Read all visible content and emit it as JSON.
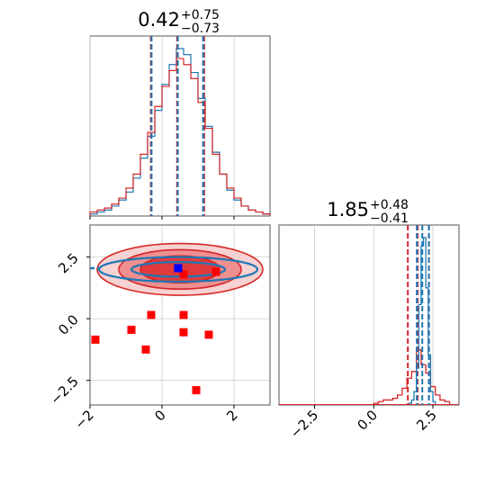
{
  "chart_data": [
    {
      "type": "histogram",
      "panel": "marginal-param-1",
      "title": {
        "median": "0.42",
        "upper": "+0.75",
        "lower": "−0.73"
      },
      "xlim": [
        -2,
        3
      ],
      "x_ticks": [
        "−2",
        "0",
        "2"
      ],
      "quantile_lines": {
        "red": [
          -0.31,
          0.42,
          1.17
        ],
        "blue": [
          -0.29,
          0.44,
          1.14
        ]
      },
      "series": [
        {
          "color": "#1f77b4",
          "bin_edges": [
            -2.0,
            -1.8,
            -1.6,
            -1.4,
            -1.2,
            -1.0,
            -0.8,
            -0.6,
            -0.4,
            -0.2,
            0.0,
            0.2,
            0.4,
            0.6,
            0.8,
            1.0,
            1.2,
            1.4,
            1.6,
            1.8,
            2.0,
            2.2,
            2.4,
            2.6,
            2.8,
            3.0
          ],
          "counts": [
            1,
            2,
            3,
            5,
            8,
            12,
            19,
            29,
            40,
            53,
            66,
            76,
            84,
            81,
            72,
            59,
            45,
            32,
            21,
            13,
            8,
            5,
            3,
            2,
            1
          ]
        },
        {
          "color": "#d62728",
          "bin_edges": [
            -2.0,
            -1.8,
            -1.6,
            -1.4,
            -1.2,
            -1.0,
            -0.8,
            -0.6,
            -0.4,
            -0.2,
            0.0,
            0.2,
            0.4,
            0.6,
            0.8,
            1.0,
            1.2,
            1.4,
            1.6,
            1.8,
            2.0,
            2.2,
            2.4,
            2.6,
            2.8,
            3.0
          ],
          "counts": [
            2,
            3,
            4,
            6,
            9,
            14,
            21,
            31,
            42,
            55,
            65,
            73,
            79,
            76,
            69,
            57,
            44,
            31,
            21,
            14,
            9,
            5,
            3,
            2,
            1
          ]
        }
      ]
    },
    {
      "type": "scatter",
      "panel": "joint-param-1-param-2",
      "xlim": [
        -2,
        3
      ],
      "ylim": [
        -3.5,
        3.8
      ],
      "x_ticks": [
        "−2",
        "0",
        "2"
      ],
      "y_ticks": [
        "2.5",
        "0.0",
        "−2.5"
      ],
      "red_contour_levels": [
        {
          "cx": 0.5,
          "cy": 2.0,
          "rx": 2.3,
          "ry": 1.05,
          "color": "#f6d2d2"
        },
        {
          "cx": 0.5,
          "cy": 2.0,
          "rx": 1.7,
          "ry": 0.8,
          "color": "#ee8f90"
        },
        {
          "cx": 0.5,
          "cy": 2.0,
          "rx": 1.1,
          "ry": 0.55,
          "color": "#e03a3c"
        }
      ],
      "blue_contours": [
        {
          "cx": 0.45,
          "cy": 2.0,
          "rx": 2.2,
          "ry": 0.5
        },
        {
          "cx": 0.45,
          "cy": 2.0,
          "rx": 1.3,
          "ry": 0.3
        }
      ],
      "red_points": [
        {
          "x": -1.85,
          "y": -0.85
        },
        {
          "x": -0.85,
          "y": -0.45
        },
        {
          "x": -0.3,
          "y": 0.15
        },
        {
          "x": 0.6,
          "y": 0.15
        },
        {
          "x": -0.45,
          "y": -1.25
        },
        {
          "x": 0.6,
          "y": -0.55
        },
        {
          "x": 1.3,
          "y": -0.65
        },
        {
          "x": 0.95,
          "y": -2.9
        },
        {
          "x": 0.6,
          "y": 1.8
        },
        {
          "x": 1.5,
          "y": 1.9
        }
      ],
      "blue_points": [
        {
          "x": 0.45,
          "y": 2.05
        }
      ]
    },
    {
      "type": "histogram",
      "panel": "marginal-param-2",
      "title": {
        "median": "1.85",
        "upper": "+0.48",
        "lower": "−0.41"
      },
      "xlim": [
        -4,
        3.6
      ],
      "x_ticks": [
        "−2.5",
        "0.0",
        "2.5"
      ],
      "quantile_lines": {
        "red": [
          1.44,
          1.85,
          2.33
        ],
        "blue": [
          1.82,
          2.05,
          2.33
        ]
      },
      "series": [
        {
          "color": "#1f77b4",
          "bin_edges": [
            1.5,
            1.6,
            1.7,
            1.8,
            1.9,
            2.0,
            2.1,
            2.2,
            2.3,
            2.4,
            2.5,
            2.6
          ],
          "counts": [
            1,
            3,
            8,
            22,
            60,
            95,
            100,
            70,
            30,
            8,
            2
          ]
        },
        {
          "color": "#d62728",
          "bin_edges": [
            0.0,
            0.2,
            0.4,
            0.6,
            0.8,
            1.0,
            1.2,
            1.4,
            1.6,
            1.8,
            2.0,
            2.2,
            2.4,
            2.6,
            2.8,
            3.0,
            3.2
          ],
          "counts": [
            1,
            2,
            3,
            3,
            4,
            6,
            10,
            16,
            20,
            33,
            24,
            19,
            11,
            6,
            3,
            2
          ]
        }
      ]
    }
  ]
}
